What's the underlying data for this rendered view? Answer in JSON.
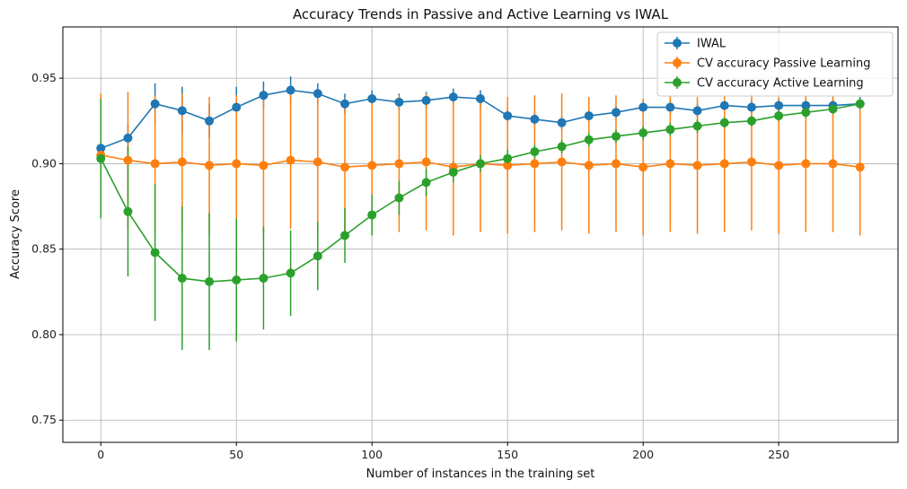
{
  "chart_data": {
    "type": "line",
    "title": "Accuracy Trends in Passive and Active Learning vs IWAL",
    "xlabel": "Number of instances in the training set",
    "ylabel": "Accuracy Score",
    "xlim": [
      -14,
      294
    ],
    "ylim": [
      0.737,
      0.98
    ],
    "xticks": [
      0,
      50,
      100,
      150,
      200,
      250
    ],
    "yticks": [
      0.75,
      0.8,
      0.85,
      0.9,
      0.95
    ],
    "ytick_labels": [
      "0.75",
      "0.80",
      "0.85",
      "0.90",
      "0.95"
    ],
    "grid": true,
    "legend_position": "top-right",
    "x": [
      0,
      10,
      20,
      30,
      40,
      50,
      60,
      70,
      80,
      90,
      100,
      110,
      120,
      130,
      140,
      150,
      160,
      170,
      180,
      190,
      200,
      210,
      220,
      230,
      240,
      250,
      260,
      270,
      280
    ],
    "series": [
      {
        "name": "IWAL",
        "color": "#1f77b4",
        "values": [
          0.909,
          0.915,
          0.935,
          0.931,
          0.925,
          0.933,
          0.94,
          0.943,
          0.941,
          0.935,
          0.938,
          0.936,
          0.937,
          0.939,
          0.938,
          0.928,
          0.926,
          0.924,
          0.928,
          0.93,
          0.933,
          0.933,
          0.931,
          0.934,
          0.933,
          0.934,
          0.934,
          0.934,
          0.935
        ],
        "error": [
          0.006,
          0.008,
          0.012,
          0.014,
          0.01,
          0.012,
          0.008,
          0.008,
          0.006,
          0.006,
          0.005,
          0.005,
          0.005,
          0.005,
          0.005,
          0.005,
          0.004,
          0.004,
          0.004,
          0.004,
          0.004,
          0.004,
          0.004,
          0.004,
          0.004,
          0.004,
          0.004,
          0.004,
          0.004
        ]
      },
      {
        "name": "CV accuracy Passive Learning",
        "color": "#ff7f0e",
        "values": [
          0.905,
          0.902,
          0.9,
          0.901,
          0.899,
          0.9,
          0.899,
          0.902,
          0.901,
          0.898,
          0.899,
          0.9,
          0.901,
          0.898,
          0.9,
          0.899,
          0.9,
          0.901,
          0.899,
          0.9,
          0.898,
          0.9,
          0.899,
          0.9,
          0.901,
          0.899,
          0.9,
          0.9,
          0.898
        ],
        "error": [
          0.036,
          0.04,
          0.04,
          0.04,
          0.04,
          0.04,
          0.04,
          0.04,
          0.04,
          0.04,
          0.04,
          0.04,
          0.04,
          0.04,
          0.04,
          0.04,
          0.04,
          0.04,
          0.04,
          0.04,
          0.04,
          0.04,
          0.04,
          0.04,
          0.04,
          0.04,
          0.04,
          0.04,
          0.04
        ]
      },
      {
        "name": "CV accuracy Active Learning",
        "color": "#2ca02c",
        "values": [
          0.903,
          0.872,
          0.848,
          0.833,
          0.831,
          0.832,
          0.833,
          0.836,
          0.846,
          0.858,
          0.87,
          0.88,
          0.889,
          0.895,
          0.9,
          0.903,
          0.907,
          0.91,
          0.914,
          0.916,
          0.918,
          0.92,
          0.922,
          0.924,
          0.925,
          0.928,
          0.93,
          0.932,
          0.935
        ],
        "error": [
          0.035,
          0.038,
          0.04,
          0.042,
          0.04,
          0.036,
          0.03,
          0.025,
          0.02,
          0.016,
          0.012,
          0.01,
          0.008,
          0.006,
          0.005,
          0.005,
          0.004,
          0.004,
          0.004,
          0.004,
          0.004,
          0.004,
          0.004,
          0.003,
          0.003,
          0.003,
          0.003,
          0.003,
          0.003
        ]
      }
    ]
  }
}
